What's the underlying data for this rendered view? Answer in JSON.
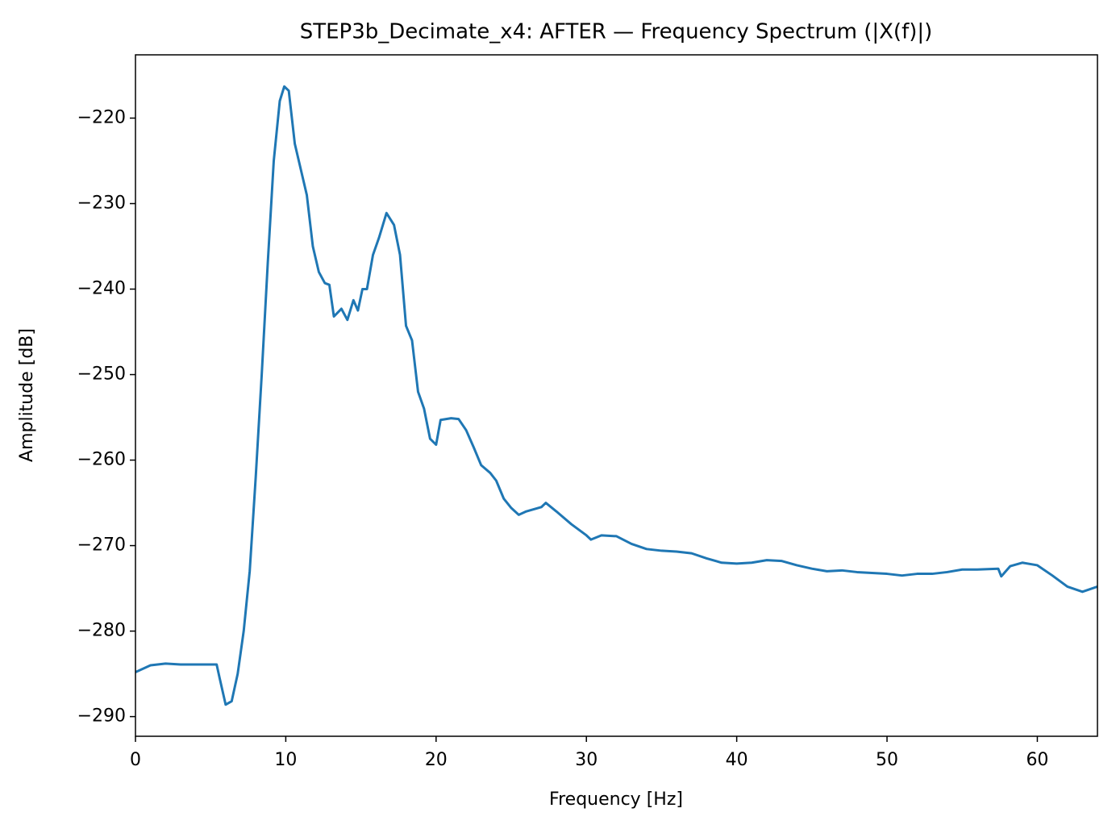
{
  "chart_data": {
    "type": "line",
    "title": "STEP3b_Decimate_x4: AFTER — Frequency Spectrum (|X(f)|)",
    "x_label": "Frequency [Hz]",
    "y_label": "Amplitude [dB]",
    "xlim": [
      0,
      64
    ],
    "ylim": [
      -292.3,
      -212.6
    ],
    "xticks": [
      0,
      10,
      20,
      30,
      40,
      50,
      60
    ],
    "yticks": [
      {
        "value": -290,
        "label": "−290"
      },
      {
        "value": -280,
        "label": "−280"
      },
      {
        "value": -270,
        "label": "−270"
      },
      {
        "value": -260,
        "label": "−260"
      },
      {
        "value": -250,
        "label": "−250"
      },
      {
        "value": -240,
        "label": "−240"
      },
      {
        "value": -230,
        "label": "−230"
      },
      {
        "value": -220,
        "label": "−220"
      }
    ],
    "grid": false,
    "color": "#1f77b4",
    "x": [
      0,
      1,
      2,
      3,
      4,
      5.4,
      5.6,
      6.0,
      6.4,
      6.8,
      7.2,
      7.6,
      8.0,
      8.4,
      8.8,
      9.2,
      9.6,
      9.9,
      10.2,
      10.6,
      11.0,
      11.4,
      11.8,
      12.2,
      12.6,
      12.9,
      13.2,
      13.7,
      14.1,
      14.5,
      14.8,
      15.1,
      15.4,
      15.8,
      16.2,
      16.7,
      17.2,
      17.6,
      18.0,
      18.4,
      18.8,
      19.2,
      19.6,
      20.0,
      20.3,
      21.0,
      21.5,
      22.0,
      22.5,
      23.0,
      23.6,
      24.0,
      24.5,
      25.0,
      25.5,
      26.0,
      27.0,
      27.3,
      28,
      29,
      30,
      30.3,
      31,
      32,
      33,
      34,
      35,
      36,
      37,
      38,
      39,
      40,
      41,
      42,
      43,
      44,
      45,
      46,
      47,
      48,
      49,
      50,
      51,
      52,
      53,
      54,
      55,
      56,
      57.4,
      57.6,
      58.2,
      59,
      60,
      61,
      62,
      63,
      64
    ],
    "values": [
      -284.8,
      -284.0,
      -283.8,
      -283.9,
      -283.9,
      -283.9,
      -285.5,
      -288.6,
      -288.2,
      -285,
      -280,
      -273,
      -262,
      -250,
      -237,
      -225,
      -218,
      -216.3,
      -216.8,
      -223,
      -226,
      -229,
      -235,
      -238,
      -239.3,
      -239.5,
      -243.2,
      -242.3,
      -243.6,
      -241.3,
      -242.5,
      -240.0,
      -240.0,
      -236,
      -234,
      -231.1,
      -232.5,
      -236,
      -244.3,
      -246,
      -252,
      -254,
      -257.5,
      -258.2,
      -255.3,
      -255.1,
      -255.2,
      -256.5,
      -258.5,
      -260.6,
      -261.5,
      -262.4,
      -264.5,
      -265.6,
      -266.4,
      -266.0,
      -265.5,
      -265.0,
      -266,
      -267.5,
      -268.8,
      -269.3,
      -268.8,
      -268.9,
      -269.8,
      -270.4,
      -270.6,
      -270.7,
      -270.9,
      -271.5,
      -272.0,
      -272.1,
      -272.0,
      -271.7,
      -271.8,
      -272.3,
      -272.7,
      -273.0,
      -272.9,
      -273.1,
      -273.2,
      -273.3,
      -273.5,
      -273.3,
      -273.3,
      -273.1,
      -272.8,
      -272.8,
      -272.7,
      -273.6,
      -272.4,
      -272.0,
      -272.3,
      -273.5,
      -274.8,
      -275.4,
      -274.8
    ]
  }
}
